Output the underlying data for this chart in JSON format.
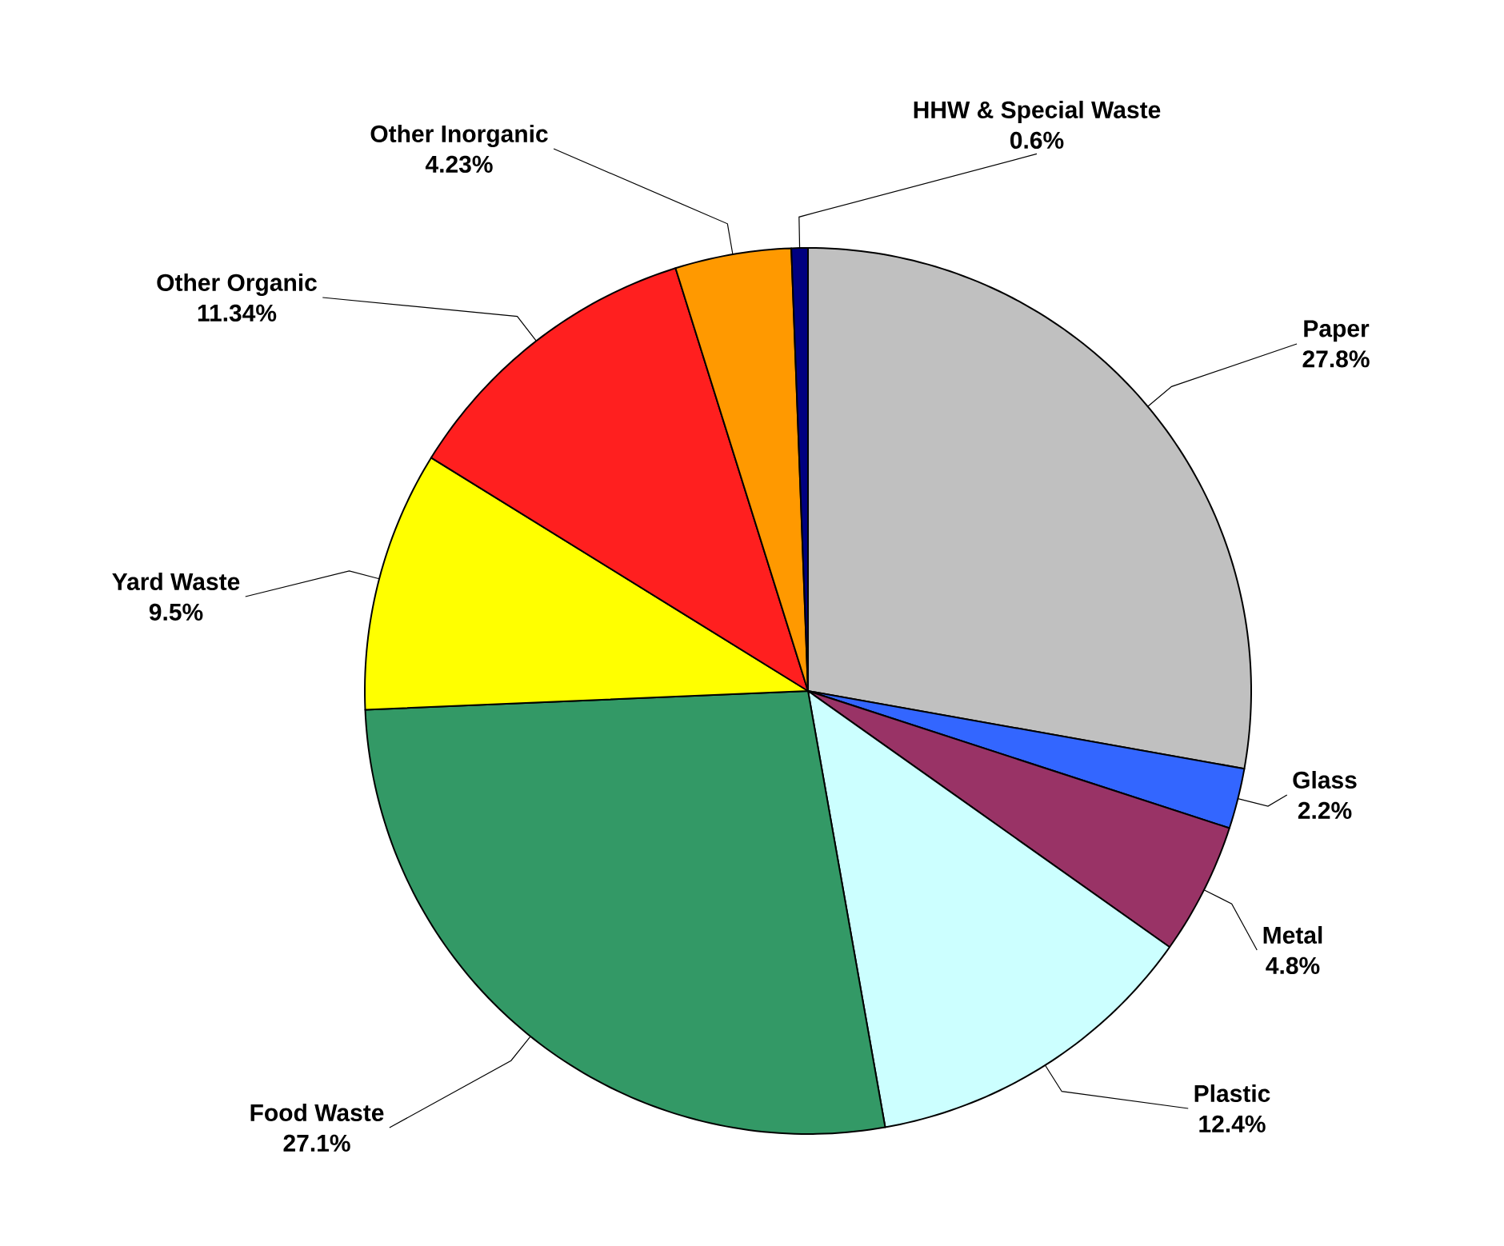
{
  "chart_data": {
    "type": "pie",
    "categories": [
      "Paper",
      "Glass",
      "Metal",
      "Plastic",
      "Food Waste",
      "Yard Waste",
      "Other Organic",
      "Other Inorganic",
      "HHW & Special Waste"
    ],
    "values": [
      27.8,
      2.2,
      4.8,
      12.4,
      27.1,
      9.5,
      11.34,
      4.23,
      0.6
    ],
    "value_labels": [
      "27.8%",
      "2.2%",
      "4.8%",
      "12.4%",
      "27.1%",
      "9.5%",
      "11.34%",
      "4.23%",
      "0.6%"
    ],
    "colors": [
      "#c0c0c0",
      "#3366ff",
      "#993366",
      "#ccffff",
      "#339966",
      "#ffff00",
      "#ff1f1f",
      "#ff9900",
      "#000080"
    ]
  }
}
